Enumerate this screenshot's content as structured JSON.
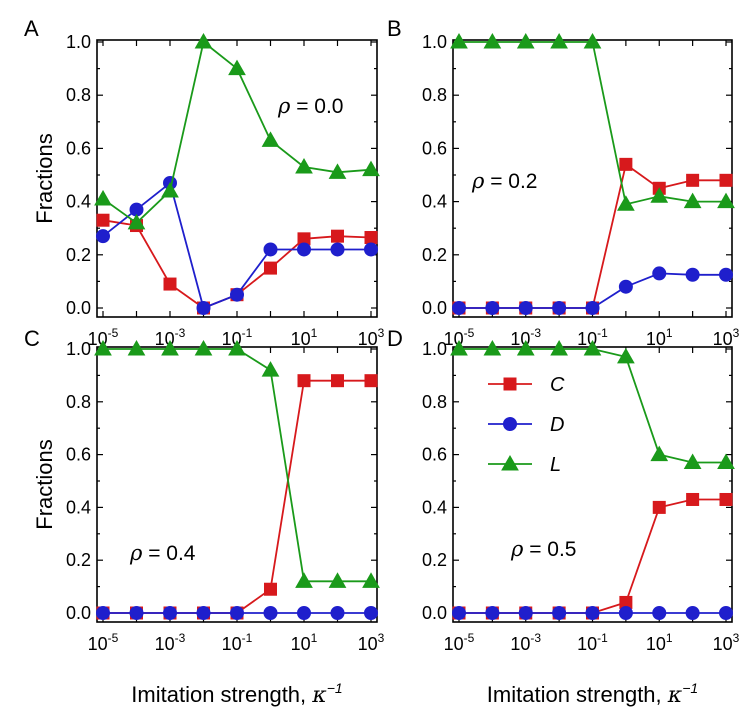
{
  "chart_data": {
    "type": "line",
    "xscale": "log",
    "x": [
      1e-05,
      0.0001,
      0.001,
      0.01,
      0.1,
      1,
      10,
      100,
      1000
    ],
    "xlim_exp": [
      -5,
      3
    ],
    "ylim": [
      0,
      1.0
    ],
    "x_tick_labels": [
      {
        "base": "10",
        "exp": "-5"
      },
      {
        "base": "10",
        "exp": "-3"
      },
      {
        "base": "10",
        "exp": "-1"
      },
      {
        "base": "10",
        "exp": "1"
      },
      {
        "base": "10",
        "exp": "3"
      }
    ],
    "y_tick_labels": [
      "0.0",
      "0.2",
      "0.4",
      "0.6",
      "0.8",
      "1.0"
    ],
    "xlabel": {
      "text": "Imitation strength, ",
      "symbol": "κ",
      "exp": "−1"
    },
    "ylabel": "Fractions",
    "legend": {
      "location": "panel D, middle-left",
      "entries": [
        {
          "name": "C",
          "color": "#d7191c",
          "marker": "square"
        },
        {
          "name": "D",
          "color": "#1f1fcc",
          "marker": "circle"
        },
        {
          "name": "L",
          "color": "#1a9a1a",
          "marker": "triangle"
        }
      ]
    },
    "panels": [
      {
        "letter": "A",
        "rho_symbol": "ρ",
        "rho_text": " = 0.0",
        "series": [
          {
            "name": "C",
            "values": [
              0.33,
              0.31,
              0.09,
              0.0,
              0.05,
              0.15,
              0.26,
              0.27,
              0.265
            ]
          },
          {
            "name": "D",
            "values": [
              0.27,
              0.37,
              0.47,
              0.0,
              0.05,
              0.22,
              0.22,
              0.22,
              0.22
            ]
          },
          {
            "name": "L",
            "values": [
              0.41,
              0.32,
              0.44,
              1.0,
              0.9,
              0.63,
              0.53,
              0.51,
              0.52
            ]
          }
        ]
      },
      {
        "letter": "B",
        "rho_symbol": "ρ",
        "rho_text": " = 0.2",
        "series": [
          {
            "name": "C",
            "values": [
              0.0,
              0.0,
              0.0,
              0.0,
              0.0,
              0.54,
              0.45,
              0.48,
              0.48
            ]
          },
          {
            "name": "D",
            "values": [
              0.0,
              0.0,
              0.0,
              0.0,
              0.0,
              0.08,
              0.13,
              0.125,
              0.125
            ]
          },
          {
            "name": "L",
            "values": [
              1.0,
              1.0,
              1.0,
              1.0,
              1.0,
              0.39,
              0.42,
              0.4,
              0.4
            ]
          }
        ]
      },
      {
        "letter": "C",
        "rho_symbol": "ρ",
        "rho_text": " = 0.4",
        "series": [
          {
            "name": "C",
            "values": [
              0.0,
              0.0,
              0.0,
              0.0,
              0.0,
              0.09,
              0.88,
              0.88,
              0.88
            ]
          },
          {
            "name": "D",
            "values": [
              0.0,
              0.0,
              0.0,
              0.0,
              0.0,
              0.0,
              0.0,
              0.0,
              0.0
            ]
          },
          {
            "name": "L",
            "values": [
              1.0,
              1.0,
              1.0,
              1.0,
              1.0,
              0.92,
              0.12,
              0.12,
              0.12
            ]
          }
        ]
      },
      {
        "letter": "D",
        "rho_symbol": "ρ",
        "rho_text": " = 0.5",
        "series": [
          {
            "name": "C",
            "values": [
              0.0,
              0.0,
              0.0,
              0.0,
              0.0,
              0.04,
              0.4,
              0.43,
              0.43
            ]
          },
          {
            "name": "D",
            "values": [
              0.0,
              0.0,
              0.0,
              0.0,
              0.0,
              0.0,
              0.0,
              0.0,
              0.0
            ]
          },
          {
            "name": "L",
            "values": [
              1.0,
              1.0,
              1.0,
              1.0,
              1.0,
              0.97,
              0.6,
              0.57,
              0.57
            ]
          }
        ]
      }
    ]
  }
}
